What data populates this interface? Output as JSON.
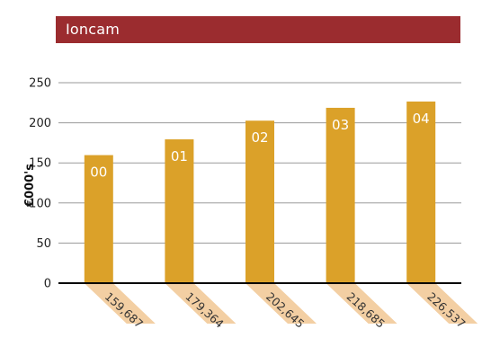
{
  "chart_data": {
    "type": "bar",
    "title": "Ioncam",
    "ylabel": "€000's",
    "xlabel": "",
    "categories": [
      "00",
      "01",
      "02",
      "03",
      "04"
    ],
    "values": [
      159.687,
      179.364,
      202.645,
      218.685,
      226.537
    ],
    "value_labels": [
      "159,687",
      "179,364",
      "202,645",
      "218,685",
      "226,537"
    ],
    "y_ticks": [
      "0",
      "50",
      "100",
      "150",
      "200",
      "250"
    ],
    "ylim": [
      0,
      250
    ],
    "grid": true,
    "legend": "none",
    "colors": {
      "title_background": "#9b2c2f",
      "bar": "#dba129",
      "value_ribbon": "#f3cfa3",
      "grid": "#9a9a9a",
      "axis": "#000000"
    }
  }
}
